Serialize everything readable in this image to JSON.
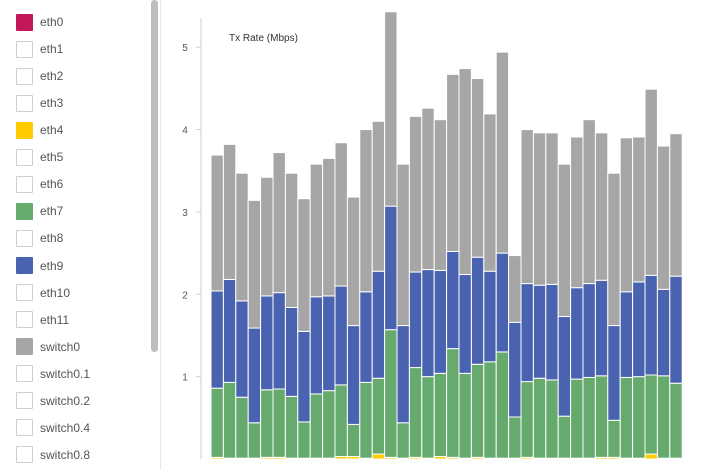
{
  "legend": {
    "items": [
      {
        "label": "eth0",
        "color": "#c2185b",
        "active": true
      },
      {
        "label": "eth1",
        "color": "#ffffff",
        "active": false
      },
      {
        "label": "eth2",
        "color": "#ffffff",
        "active": false
      },
      {
        "label": "eth3",
        "color": "#ffffff",
        "active": false
      },
      {
        "label": "eth4",
        "color": "#ffcc00",
        "active": true
      },
      {
        "label": "eth5",
        "color": "#ffffff",
        "active": false
      },
      {
        "label": "eth6",
        "color": "#ffffff",
        "active": false
      },
      {
        "label": "eth7",
        "color": "#66aa6e",
        "active": true
      },
      {
        "label": "eth8",
        "color": "#ffffff",
        "active": false
      },
      {
        "label": "eth9",
        "color": "#4a63b0",
        "active": true
      },
      {
        "label": "eth10",
        "color": "#ffffff",
        "active": false
      },
      {
        "label": "eth11",
        "color": "#ffffff",
        "active": false
      },
      {
        "label": "switch0",
        "color": "#a6a6a6",
        "active": true
      },
      {
        "label": "switch0.1",
        "color": "#ffffff",
        "active": false
      },
      {
        "label": "switch0.2",
        "color": "#ffffff",
        "active": false
      },
      {
        "label": "switch0.4",
        "color": "#ffffff",
        "active": false
      },
      {
        "label": "switch0.8",
        "color": "#ffffff",
        "active": false
      }
    ]
  },
  "chart_data": {
    "type": "bar",
    "stacked": true,
    "title": "Tx Rate (Mbps)",
    "xlabel": "",
    "ylabel": "",
    "ylim": [
      0,
      5.5
    ],
    "yticks": [
      1,
      2,
      3,
      4,
      5
    ],
    "grid": false,
    "legend_position": "left",
    "series": [
      {
        "name": "eth4",
        "color": "#ffcc00",
        "values": [
          0.02,
          0.01,
          0.01,
          0.01,
          0.02,
          0.02,
          0.01,
          0.01,
          0.01,
          0.01,
          0.03,
          0.03,
          0.01,
          0.06,
          0.02,
          0.01,
          0.02,
          0.01,
          0.03,
          0.02,
          0.01,
          0.02,
          0.01,
          0.01,
          0.01,
          0.02,
          0.01,
          0.01,
          0.01,
          0.01,
          0.01,
          0.02,
          0.02,
          0.01,
          0.01,
          0.06,
          0.01,
          0.01
        ]
      },
      {
        "name": "eth7",
        "color": "#66aa6e",
        "values": [
          0.84,
          0.92,
          0.74,
          0.43,
          0.82,
          0.83,
          0.75,
          0.44,
          0.78,
          0.82,
          0.87,
          0.39,
          0.92,
          0.92,
          1.55,
          0.43,
          1.09,
          0.99,
          1.01,
          1.32,
          1.03,
          1.13,
          1.17,
          1.29,
          0.5,
          0.92,
          0.97,
          0.95,
          0.51,
          0.96,
          0.98,
          0.99,
          0.45,
          0.98,
          0.99,
          0.96,
          1.0,
          0.91
        ]
      },
      {
        "name": "eth9",
        "color": "#4a63b0",
        "values": [
          1.18,
          1.25,
          1.17,
          1.15,
          1.14,
          1.17,
          1.08,
          1.1,
          1.18,
          1.15,
          1.2,
          1.2,
          1.1,
          1.3,
          1.5,
          1.18,
          1.16,
          1.3,
          1.25,
          1.18,
          1.2,
          1.3,
          1.1,
          1.2,
          1.15,
          1.19,
          1.13,
          1.16,
          1.21,
          1.11,
          1.14,
          1.16,
          1.15,
          1.04,
          1.15,
          1.21,
          1.05,
          1.3
        ]
      },
      {
        "name": "switch0",
        "color": "#a6a6a6",
        "values": [
          1.65,
          1.64,
          1.55,
          1.55,
          1.44,
          1.7,
          1.63,
          1.61,
          1.61,
          1.67,
          1.74,
          1.56,
          1.97,
          1.82,
          2.36,
          1.96,
          1.89,
          1.96,
          1.83,
          2.15,
          2.5,
          2.17,
          1.91,
          2.44,
          0.81,
          1.87,
          1.85,
          1.84,
          1.85,
          1.83,
          1.99,
          1.79,
          1.85,
          1.87,
          1.76,
          2.26,
          1.74,
          1.73
        ]
      }
    ]
  }
}
